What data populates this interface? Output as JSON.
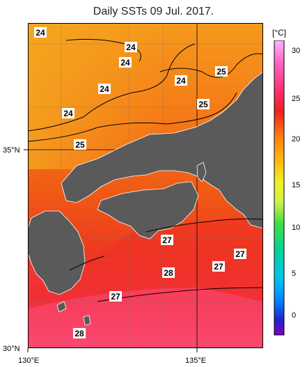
{
  "title": "Daily SSTs 09 Jul. 2017.",
  "axes": {
    "lat_labels": [
      {
        "text": "35°N",
        "lat": 35
      },
      {
        "text": "30°N",
        "lat": 30
      }
    ],
    "lon_labels": [
      {
        "text": "130°E",
        "lon": 130
      },
      {
        "text": "135°E",
        "lon": 135
      }
    ]
  },
  "contour_labels": [
    {
      "text": "24"
    },
    {
      "text": "24"
    },
    {
      "text": "24"
    },
    {
      "text": "24"
    },
    {
      "text": "24"
    },
    {
      "text": "24"
    },
    {
      "text": "25"
    },
    {
      "text": "25"
    },
    {
      "text": "25"
    },
    {
      "text": "27"
    },
    {
      "text": "27"
    },
    {
      "text": "27"
    },
    {
      "text": "28"
    },
    {
      "text": "27"
    },
    {
      "text": "28"
    }
  ],
  "colorbar": {
    "unit": "[°C]",
    "ticks": [
      "30",
      "25",
      "20",
      "15",
      "10",
      "5",
      "0"
    ]
  },
  "colors": {
    "land": "#5a5a5a",
    "sea_cool": "#f0a020",
    "sea_warm": "#ee3322",
    "sea_hot": "#ff5090"
  }
}
